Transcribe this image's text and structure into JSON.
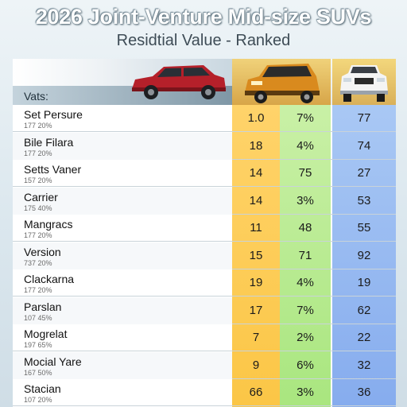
{
  "header": {
    "title": "2026 Joint-Venture Mid-size SUVs",
    "subtitle": "Residtial Value - Ranked"
  },
  "table": {
    "columns_label": "Vats:",
    "colors": {
      "col_a": "#fbc646",
      "col_b": "#a9e67f",
      "col_c": "#86acee",
      "car_red": "#b5202a",
      "car_orange": "#d98a1e",
      "car_white": "#f4f4f4"
    },
    "rows": [
      {
        "name": "Set Persure",
        "sub": "177 20%",
        "a": "1.0",
        "b": "7%",
        "c": "77"
      },
      {
        "name": "Bile Filara",
        "sub": "177 20%",
        "a": "18",
        "b": "4%",
        "c": "74"
      },
      {
        "name": "Setts Vaner",
        "sub": "157 20%",
        "a": "14",
        "b": "75",
        "c": "27"
      },
      {
        "name": "Carrier",
        "sub": "175 40%",
        "a": "14",
        "b": "3%",
        "c": "53"
      },
      {
        "name": "Mangracs",
        "sub": "177 20%",
        "a": "11",
        "b": "48",
        "c": "55"
      },
      {
        "name": "Version",
        "sub": "737 20%",
        "a": "15",
        "b": "71",
        "c": "92"
      },
      {
        "name": "Clackarna",
        "sub": "177 20%",
        "a": "19",
        "b": "4%",
        "c": "19"
      },
      {
        "name": "Parslan",
        "sub": "107 45%",
        "a": "17",
        "b": "7%",
        "c": "62"
      },
      {
        "name": "Mogrelat",
        "sub": "197 65%",
        "a": "7",
        "b": "2%",
        "c": "22"
      },
      {
        "name": "Mocial Yare",
        "sub": "167 50%",
        "a": "9",
        "b": "6%",
        "c": "32"
      },
      {
        "name": "Stacian",
        "sub": "107 20%",
        "a": "66",
        "b": "3%",
        "c": "36"
      }
    ]
  }
}
